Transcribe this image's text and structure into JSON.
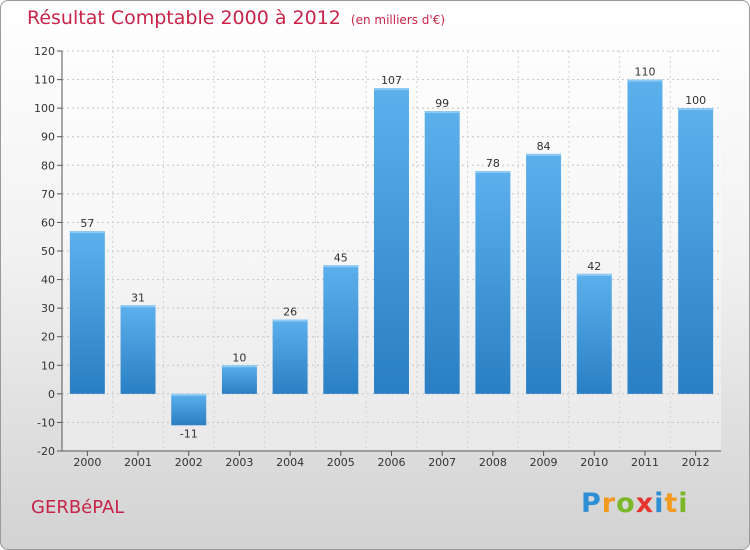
{
  "header": {
    "title": "Résultat Comptable 2000 à 2012",
    "unit": "(en milliers d'€)"
  },
  "footer": {
    "town": "GERBéPAL",
    "logo_letters": [
      "P",
      "r",
      "o",
      "x",
      "i",
      "t",
      "i"
    ],
    "logo_colors": [
      "#2e8fd4",
      "#f29a1f",
      "#7ab829",
      "#e8352f",
      "#2e8fd4",
      "#f29a1f",
      "#7ab829"
    ]
  },
  "chart_data": {
    "type": "bar",
    "title": "Résultat Comptable 2000 à 2012",
    "xlabel": "",
    "ylabel": "",
    "categories": [
      "2000",
      "2001",
      "2002",
      "2003",
      "2004",
      "2005",
      "2006",
      "2007",
      "2008",
      "2009",
      "2010",
      "2011",
      "2012"
    ],
    "values": [
      57,
      31,
      -11,
      10,
      26,
      45,
      107,
      99,
      78,
      84,
      42,
      110,
      100
    ],
    "value_labels": [
      "57",
      "31",
      "-11",
      "10",
      "26",
      "45",
      "107",
      "99",
      "78",
      "84",
      "42",
      "110",
      "100"
    ],
    "ylim": [
      -20,
      120
    ],
    "yticks": [
      -20,
      -10,
      0,
      10,
      20,
      30,
      40,
      50,
      60,
      70,
      80,
      90,
      100,
      110,
      120
    ],
    "ytick_labels": [
      "-20",
      "-10",
      "0",
      "10",
      "20",
      "30",
      "40",
      "50",
      "60",
      "70",
      "80",
      "90",
      "100",
      "110",
      "120"
    ],
    "grid": true,
    "bar_color": "#4fa3e3",
    "bar_color_dark": "#2a7fc4"
  }
}
